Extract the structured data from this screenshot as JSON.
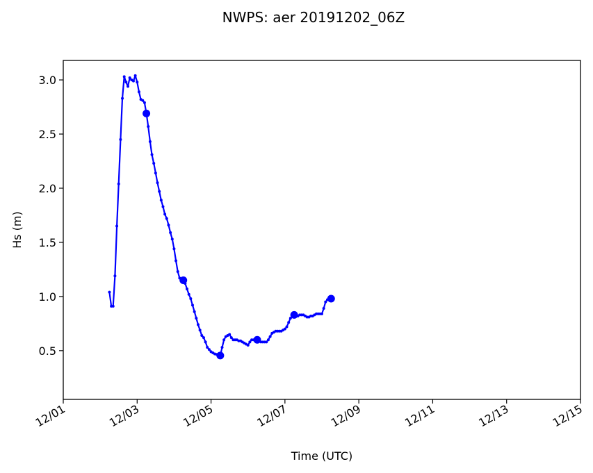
{
  "chart_data": {
    "type": "line",
    "title": "NWPS: aer 20191202_06Z",
    "xlabel": "Time (UTC)",
    "ylabel": "Hs (m)",
    "x_ticks": [
      "12/01",
      "12/03",
      "12/05",
      "12/07",
      "12/09",
      "12/11",
      "12/13",
      "12/15"
    ],
    "x_tick_days": [
      1,
      3,
      5,
      7,
      9,
      11,
      13,
      15
    ],
    "xlim_days": [
      1,
      15
    ],
    "y_ticks": [
      "0.5",
      "1.0",
      "1.5",
      "2.0",
      "2.5",
      "3.0"
    ],
    "y_tick_values": [
      0.5,
      1.0,
      1.5,
      2.0,
      2.5,
      3.0
    ],
    "ylim": [
      0.05,
      3.18
    ],
    "grid": false,
    "line_color": "#0000ff",
    "series": [
      {
        "x_days": [
          2.25,
          2.3,
          2.35,
          2.4,
          2.45,
          2.5,
          2.55,
          2.6,
          2.65,
          2.7,
          2.75,
          2.8,
          2.85,
          2.9,
          2.95,
          3.0,
          3.05,
          3.1,
          3.15,
          3.2,
          3.25,
          3.3,
          3.35,
          3.4,
          3.45,
          3.5,
          3.55,
          3.6,
          3.65,
          3.7,
          3.75,
          3.8,
          3.85,
          3.9,
          3.95,
          4.0,
          4.05,
          4.1,
          4.15,
          4.2,
          4.25,
          4.3,
          4.35,
          4.4,
          4.45,
          4.5,
          4.55,
          4.6,
          4.65,
          4.7,
          4.75,
          4.8,
          4.85,
          4.9,
          4.95,
          5.0,
          5.05,
          5.1,
          5.15,
          5.2,
          5.25,
          5.3,
          5.35,
          5.4,
          5.45,
          5.5,
          5.55,
          5.6,
          5.65,
          5.7,
          5.75,
          5.8,
          5.85,
          5.9,
          5.95,
          6.0,
          6.05,
          6.1,
          6.15,
          6.2,
          6.25,
          6.3,
          6.35,
          6.4,
          6.45,
          6.5,
          6.55,
          6.6,
          6.65,
          6.7,
          6.75,
          6.8,
          6.85,
          6.9,
          6.95,
          7.0,
          7.05,
          7.1,
          7.15,
          7.2,
          7.25,
          7.3,
          7.35,
          7.4,
          7.45,
          7.5,
          7.55,
          7.6,
          7.65,
          7.7,
          7.75,
          7.8,
          7.85,
          7.9,
          7.95,
          8.0,
          8.05,
          8.1,
          8.15,
          8.2,
          8.25
        ],
        "values": [
          1.04,
          0.91,
          0.91,
          1.19,
          1.65,
          2.04,
          2.45,
          2.83,
          3.03,
          2.98,
          2.94,
          3.02,
          3.0,
          2.99,
          3.04,
          2.98,
          2.89,
          2.82,
          2.81,
          2.79,
          2.69,
          2.57,
          2.43,
          2.31,
          2.23,
          2.14,
          2.05,
          1.97,
          1.89,
          1.83,
          1.76,
          1.72,
          1.66,
          1.59,
          1.53,
          1.44,
          1.33,
          1.23,
          1.17,
          1.15,
          1.15,
          1.12,
          1.07,
          1.02,
          0.98,
          0.92,
          0.86,
          0.8,
          0.74,
          0.69,
          0.64,
          0.62,
          0.58,
          0.53,
          0.51,
          0.49,
          0.48,
          0.47,
          0.465,
          0.46,
          0.455,
          0.53,
          0.6,
          0.63,
          0.64,
          0.65,
          0.62,
          0.6,
          0.6,
          0.6,
          0.59,
          0.59,
          0.58,
          0.57,
          0.56,
          0.55,
          0.58,
          0.6,
          0.6,
          0.6,
          0.6,
          0.59,
          0.58,
          0.58,
          0.58,
          0.58,
          0.6,
          0.63,
          0.66,
          0.67,
          0.68,
          0.68,
          0.68,
          0.68,
          0.69,
          0.7,
          0.72,
          0.76,
          0.8,
          0.82,
          0.83,
          0.82,
          0.82,
          0.83,
          0.83,
          0.83,
          0.82,
          0.81,
          0.81,
          0.82,
          0.82,
          0.83,
          0.84,
          0.84,
          0.84,
          0.84,
          0.89,
          0.95,
          0.97,
          0.97,
          0.98
        ],
        "large_marker_days": [
          3.25,
          4.25,
          5.25,
          6.25,
          7.25,
          8.25
        ]
      }
    ]
  }
}
